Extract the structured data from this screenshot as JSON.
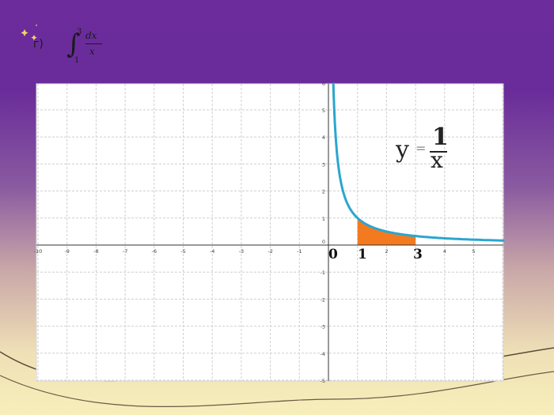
{
  "formula": {
    "letter": "г)",
    "integral_sign": "∫",
    "upper": "3",
    "lower": "1",
    "numerator": "dx",
    "denominator": "x"
  },
  "equation": {
    "y": "y",
    "equals": "=",
    "num": "1",
    "den": "x"
  },
  "axis_labels": {
    "zero": "0",
    "one": "1",
    "three": "3"
  },
  "chart_data": {
    "type": "line",
    "function": "y = 1/x",
    "xlim": [
      -10,
      6
    ],
    "ylim": [
      -5,
      6
    ],
    "x_ticks": [
      -10,
      -9,
      -8,
      -7,
      -6,
      -5,
      -4,
      -3,
      -2,
      -1,
      2,
      4,
      5
    ],
    "y_ticks": [
      6,
      5,
      4,
      3,
      2,
      1,
      0,
      -1,
      -2,
      -3,
      -4,
      -5
    ],
    "shaded_region": {
      "from": 1,
      "to": 3
    },
    "grid": true
  },
  "colors": {
    "background_top": "#6b2d9b",
    "background_bottom": "#f7efb5",
    "curve": "#2aa6cf",
    "shade": "#f47a1f",
    "grid": "#c8c8c8",
    "sparkle": "#f4d36a"
  }
}
